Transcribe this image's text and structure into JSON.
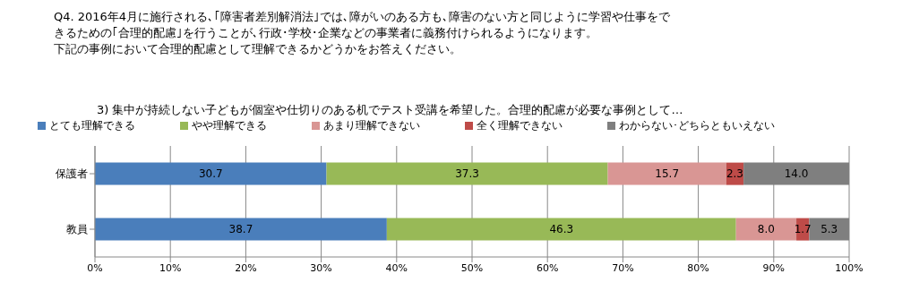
{
  "chart_data": {
    "type": "bar",
    "orientation": "horizontal",
    "stacked": true,
    "title": "Q4. 2016年4月に施行される､｢障害者差別解消法｣では､障がいのある方も､障害のない方と同じように学習や仕事をできるための｢合理的配慮｣を行うことが､行政･学校･企業などの事業者に義務付けられるようになります。",
    "subtitle": "下記の事例において合理的配慮として理解できるかどうかをお答えください。",
    "annotations": [
      "3) 集中が持続しない子どもが個室や仕切りのある机でテスト受講を希望した。合理的配慮が必要な事例として…"
    ],
    "categories": [
      "保護者",
      "教員"
    ],
    "series": [
      {
        "name": "とても理解できる",
        "color": "#4a7ebb",
        "values": [
          30.7,
          38.7
        ],
        "value_labels": [
          "30.7",
          "38.7"
        ]
      },
      {
        "name": "やや理解できる",
        "color": "#98b957",
        "values": [
          37.3,
          46.3
        ],
        "value_labels": [
          "37.3",
          "46.3"
        ]
      },
      {
        "name": "あまり理解できない",
        "color": "#d99694",
        "values": [
          15.7,
          8.0
        ],
        "value_labels": [
          "15.7",
          "8.0"
        ]
      },
      {
        "name": "全く理解できない",
        "color": "#be4b48",
        "values": [
          2.3,
          1.7
        ],
        "value_labels": [
          "2.3",
          "1.7"
        ]
      },
      {
        "name": "わからない･どちらともいえない",
        "color": "#7f7f7f",
        "values": [
          14.0,
          5.3
        ],
        "value_labels": [
          "14.0",
          "5.3"
        ]
      }
    ],
    "xlim": [
      0,
      100
    ],
    "xticks": [
      {
        "value": 0,
        "label": "0%"
      },
      {
        "value": 10,
        "label": "10%"
      },
      {
        "value": 20,
        "label": "20%"
      },
      {
        "value": 30,
        "label": "30%"
      },
      {
        "value": 40,
        "label": "40%"
      },
      {
        "value": 50,
        "label": "50%"
      },
      {
        "value": 60,
        "label": "60%"
      },
      {
        "value": 70,
        "label": "70%"
      },
      {
        "value": 80,
        "label": "80%"
      },
      {
        "value": 90,
        "label": "90%"
      },
      {
        "value": 100,
        "label": "100%"
      }
    ],
    "grid": "x",
    "legend": "top"
  }
}
